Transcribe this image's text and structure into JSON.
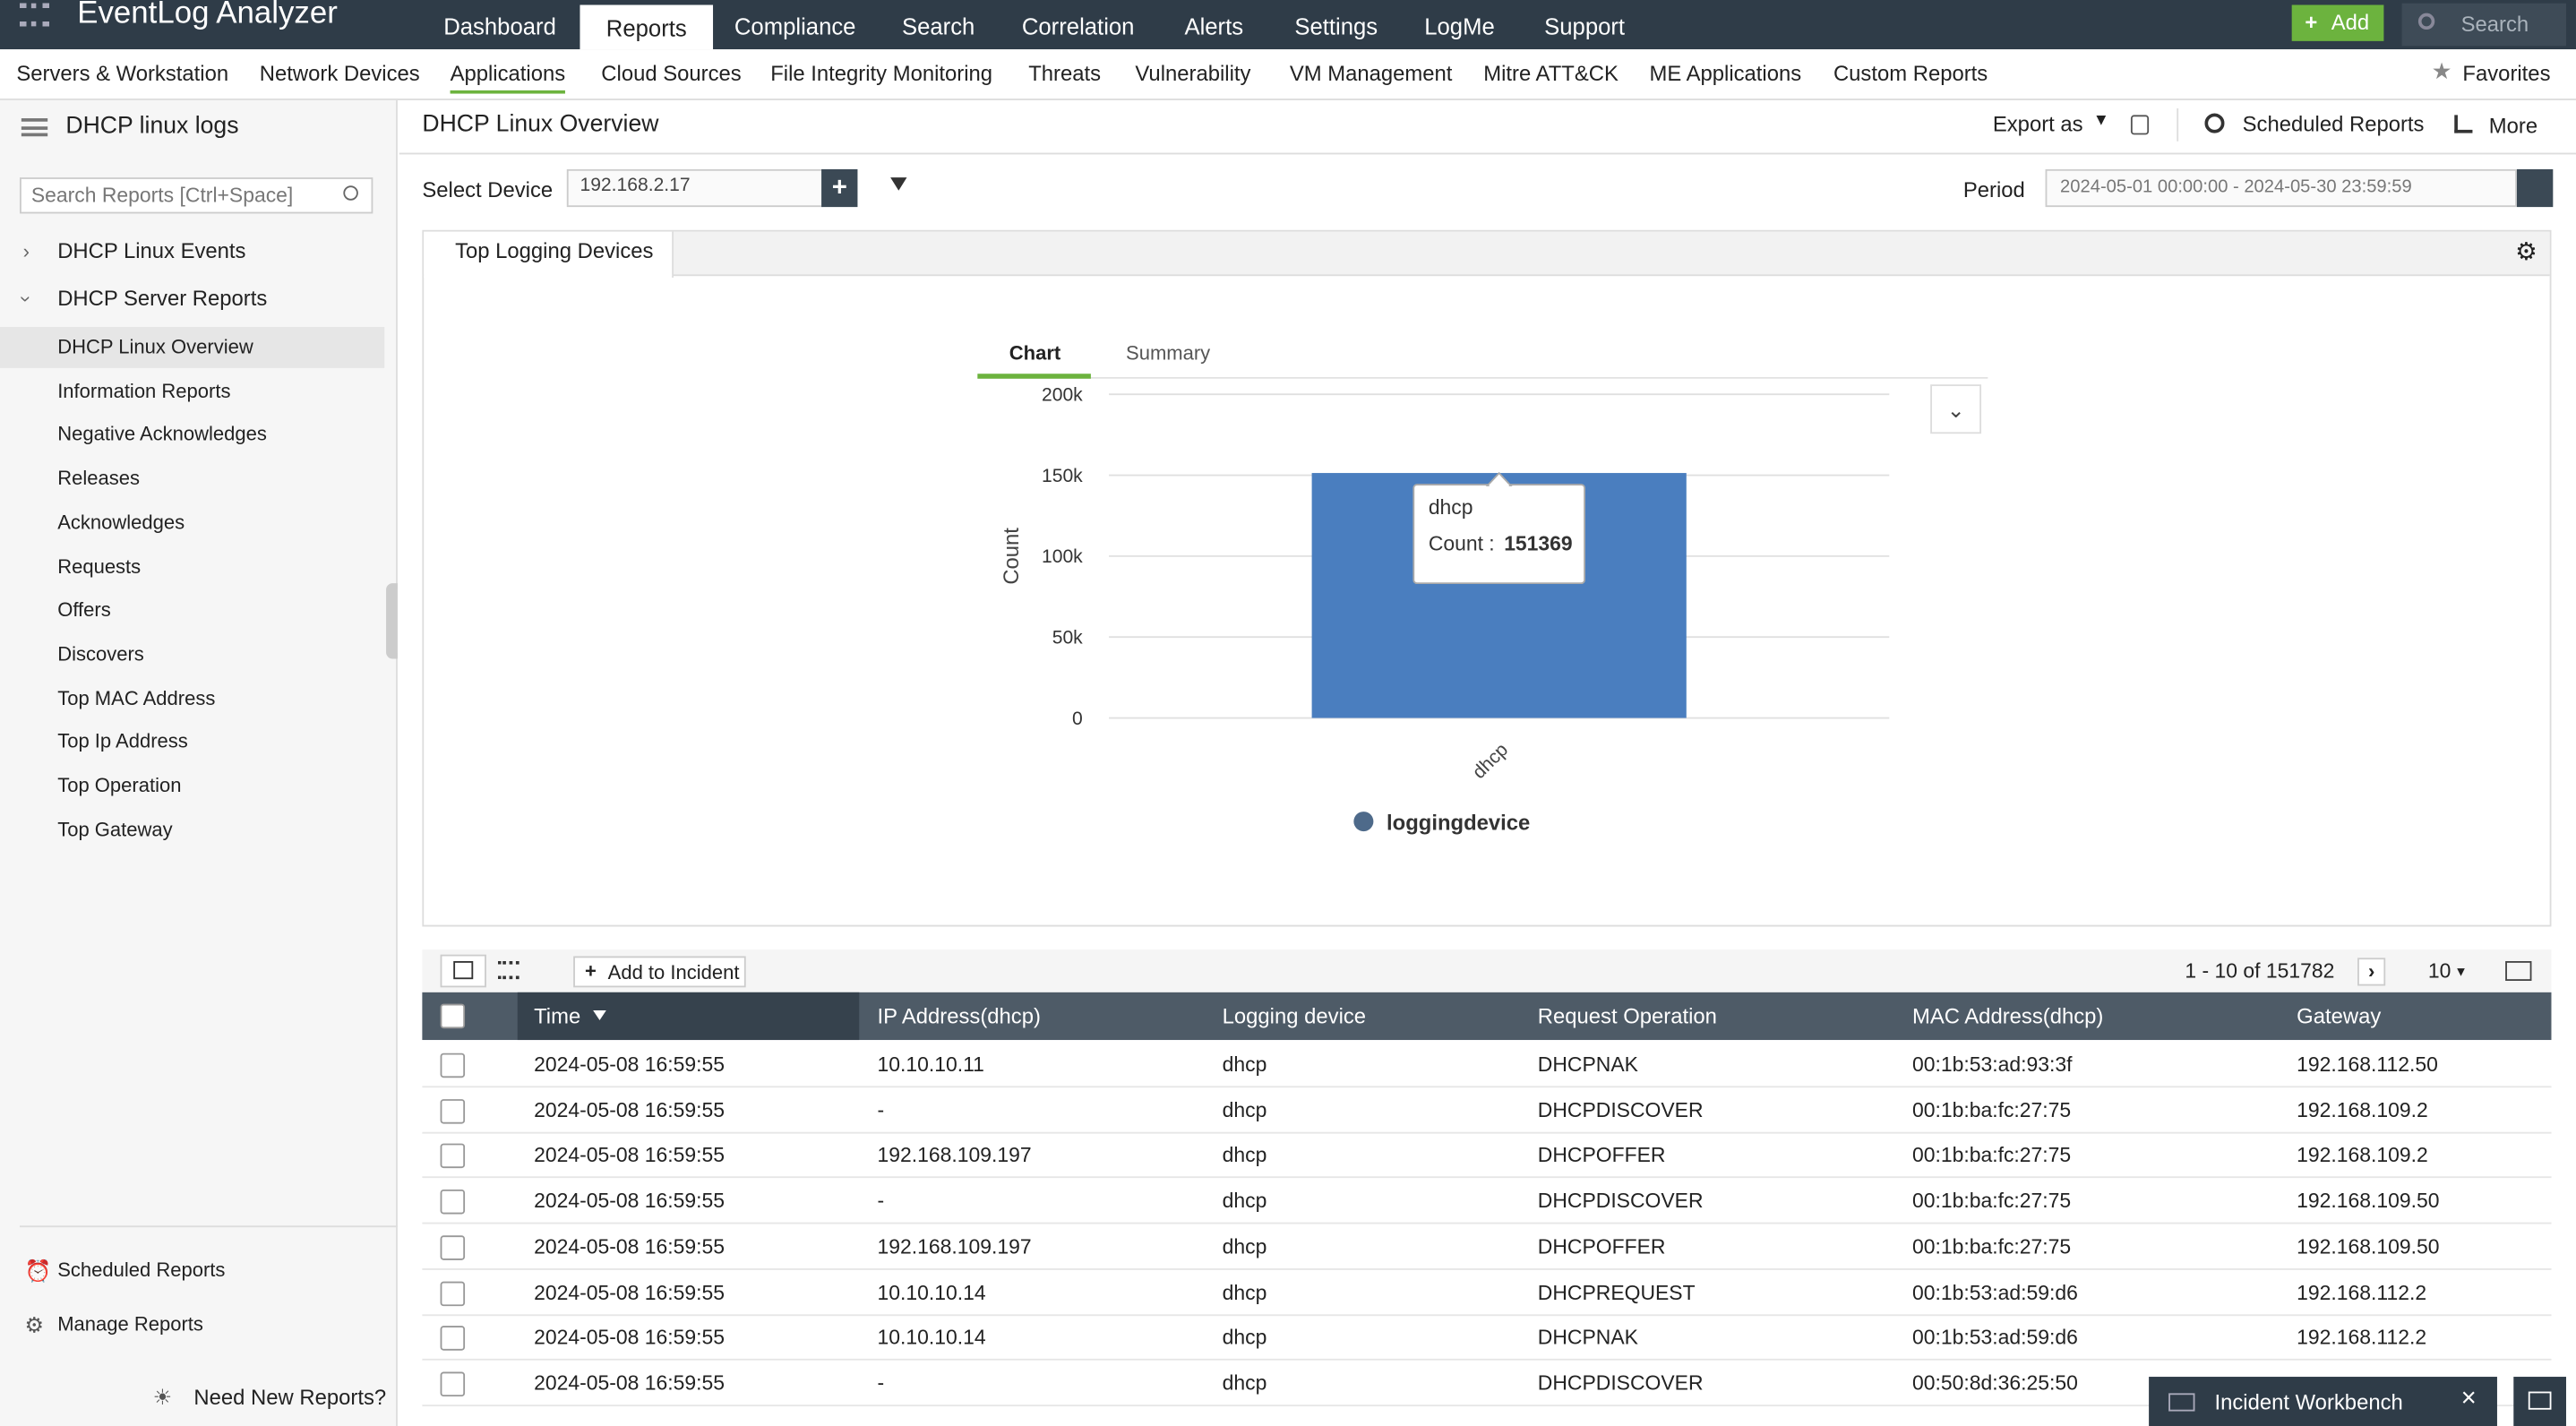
{
  "top_nav": {
    "logo": "EventLog Analyzer",
    "items": [
      "Dashboard",
      "Reports",
      "Compliance",
      "Search",
      "Correlation",
      "Alerts",
      "Settings",
      "LogMe",
      "Support"
    ],
    "add": "Add",
    "search": "Search"
  },
  "sub_nav": {
    "items": [
      "Servers & Workstation",
      "Network Devices",
      "Applications",
      "Cloud Sources",
      "File Integrity Monitoring",
      "Threats",
      "Vulnerability",
      "VM Management",
      "Mitre ATT&CK",
      "ME Applications",
      "Custom Reports"
    ],
    "favorites": "Favorites"
  },
  "sidebar": {
    "title": "DHCP linux logs",
    "search_placeholder": "Search Reports [Ctrl+Space]",
    "groups": [
      "DHCP Linux Events",
      "DHCP Server Reports"
    ],
    "items": [
      "DHCP Linux Overview",
      "Information Reports",
      "Negative Acknowledges",
      "Releases",
      "Acknowledges",
      "Requests",
      "Offers",
      "Discovers",
      "Top MAC Address",
      "Top Ip Address",
      "Top Operation",
      "Top Gateway"
    ],
    "footer": [
      "Scheduled Reports",
      "Manage Reports"
    ],
    "need": "Need New Reports?"
  },
  "header": {
    "title": "DHCP Linux Overview",
    "export": "Export as",
    "scheduled": "Scheduled Reports",
    "more": "More"
  },
  "filters": {
    "device_label": "Select Device",
    "device": "192.168.2.17",
    "period_label": "Period",
    "period": "2024-05-01 00:00:00 - 2024-05-30 23:59:59"
  },
  "panel_tab": "Top Logging Devices",
  "chart_data": {
    "type": "bar",
    "tabs": [
      "Chart",
      "Summary"
    ],
    "y_label": "Count",
    "categories": [
      "dhcp"
    ],
    "series": [
      {
        "name": "loggingdevice",
        "color": "#4a7ebf",
        "values": [
          151369
        ]
      }
    ],
    "ylim": [
      0,
      200000
    ],
    "yticks": [
      0,
      {
        "value": 50000,
        "label": "50k"
      },
      {
        "value": 100000,
        "label": "100k"
      },
      {
        "value": 150000,
        "label": "150k"
      },
      {
        "value": 200000,
        "label": "200k"
      }
    ],
    "grid": true,
    "tooltip_label": "Count :"
  },
  "table": {
    "toolbar": {
      "add": "Add to Incident",
      "range": "1 - 10 of 151782",
      "page_size": "10"
    },
    "columns": [
      "Time",
      "IP Address(dhcp)",
      "Logging device",
      "Request Operation",
      "MAC Address(dhcp)",
      "Gateway"
    ],
    "rows": [
      [
        "2024-05-08 16:59:55",
        "10.10.10.11",
        "dhcp",
        "DHCPNAK",
        "00:1b:53:ad:93:3f",
        "192.168.112.50"
      ],
      [
        "2024-05-08 16:59:55",
        "-",
        "dhcp",
        "DHCPDISCOVER",
        "00:1b:ba:fc:27:75",
        "192.168.109.2"
      ],
      [
        "2024-05-08 16:59:55",
        "192.168.109.197",
        "dhcp",
        "DHCPOFFER",
        "00:1b:ba:fc:27:75",
        "192.168.109.2"
      ],
      [
        "2024-05-08 16:59:55",
        "-",
        "dhcp",
        "DHCPDISCOVER",
        "00:1b:ba:fc:27:75",
        "192.168.109.50"
      ],
      [
        "2024-05-08 16:59:55",
        "192.168.109.197",
        "dhcp",
        "DHCPOFFER",
        "00:1b:ba:fc:27:75",
        "192.168.109.50"
      ],
      [
        "2024-05-08 16:59:55",
        "10.10.10.14",
        "dhcp",
        "DHCPREQUEST",
        "00:1b:53:ad:59:d6",
        "192.168.112.2"
      ],
      [
        "2024-05-08 16:59:55",
        "10.10.10.14",
        "dhcp",
        "DHCPNAK",
        "00:1b:53:ad:59:d6",
        "192.168.112.2"
      ],
      [
        "2024-05-08 16:59:55",
        "-",
        "dhcp",
        "DHCPDISCOVER",
        "00:50:8d:36:25:50",
        ""
      ]
    ]
  },
  "incident_workbench": "Incident Workbench"
}
